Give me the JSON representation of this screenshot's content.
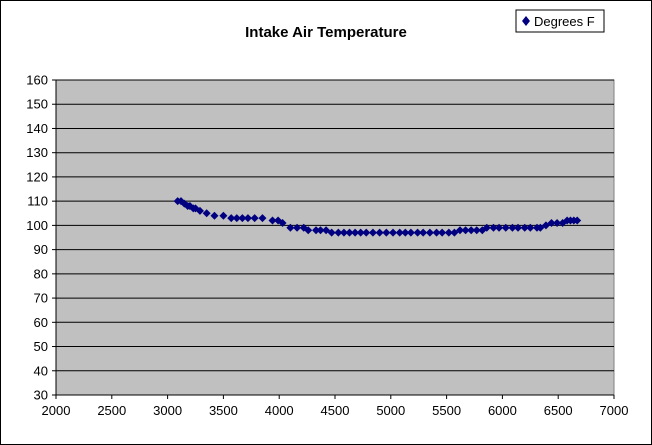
{
  "chart_data": {
    "type": "scatter",
    "title": "Intake Air Temperature",
    "xlabel": "",
    "ylabel": "",
    "xlim": [
      2000,
      7000
    ],
    "ylim": [
      30,
      160
    ],
    "x_ticks": [
      2000,
      2500,
      3000,
      3500,
      4000,
      4500,
      5000,
      5500,
      6000,
      6500,
      7000
    ],
    "y_ticks": [
      30,
      40,
      50,
      60,
      70,
      80,
      90,
      100,
      110,
      120,
      130,
      140,
      150,
      160
    ],
    "grid": "horizontal",
    "legend": "top-right",
    "plot_background": "#c0c0c0",
    "marker_color": "#000080",
    "series": [
      {
        "name": "Degrees F",
        "x": [
          3090,
          3120,
          3150,
          3180,
          3200,
          3230,
          3250,
          3290,
          3350,
          3420,
          3500,
          3570,
          3620,
          3670,
          3720,
          3780,
          3850,
          3940,
          3990,
          4030,
          4100,
          4160,
          4220,
          4260,
          4330,
          4370,
          4420,
          4470,
          4530,
          4580,
          4630,
          4680,
          4730,
          4780,
          4840,
          4900,
          4960,
          5020,
          5080,
          5130,
          5180,
          5240,
          5290,
          5350,
          5410,
          5460,
          5520,
          5570,
          5620,
          5670,
          5720,
          5770,
          5820,
          5860,
          5920,
          5970,
          6030,
          6090,
          6140,
          6200,
          6250,
          6310,
          6340,
          6390,
          6440,
          6490,
          6540,
          6580,
          6610,
          6640,
          6670
        ],
        "y": [
          110,
          110,
          109,
          108,
          108,
          107,
          107,
          106,
          105,
          104,
          104,
          103,
          103,
          103,
          103,
          103,
          103,
          102,
          102,
          101,
          99,
          99,
          99,
          98,
          98,
          98,
          98,
          97,
          97,
          97,
          97,
          97,
          97,
          97,
          97,
          97,
          97,
          97,
          97,
          97,
          97,
          97,
          97,
          97,
          97,
          97,
          97,
          97,
          98,
          98,
          98,
          98,
          98,
          99,
          99,
          99,
          99,
          99,
          99,
          99,
          99,
          99,
          99,
          100,
          101,
          101,
          101,
          102,
          102,
          102,
          102
        ]
      }
    ]
  }
}
